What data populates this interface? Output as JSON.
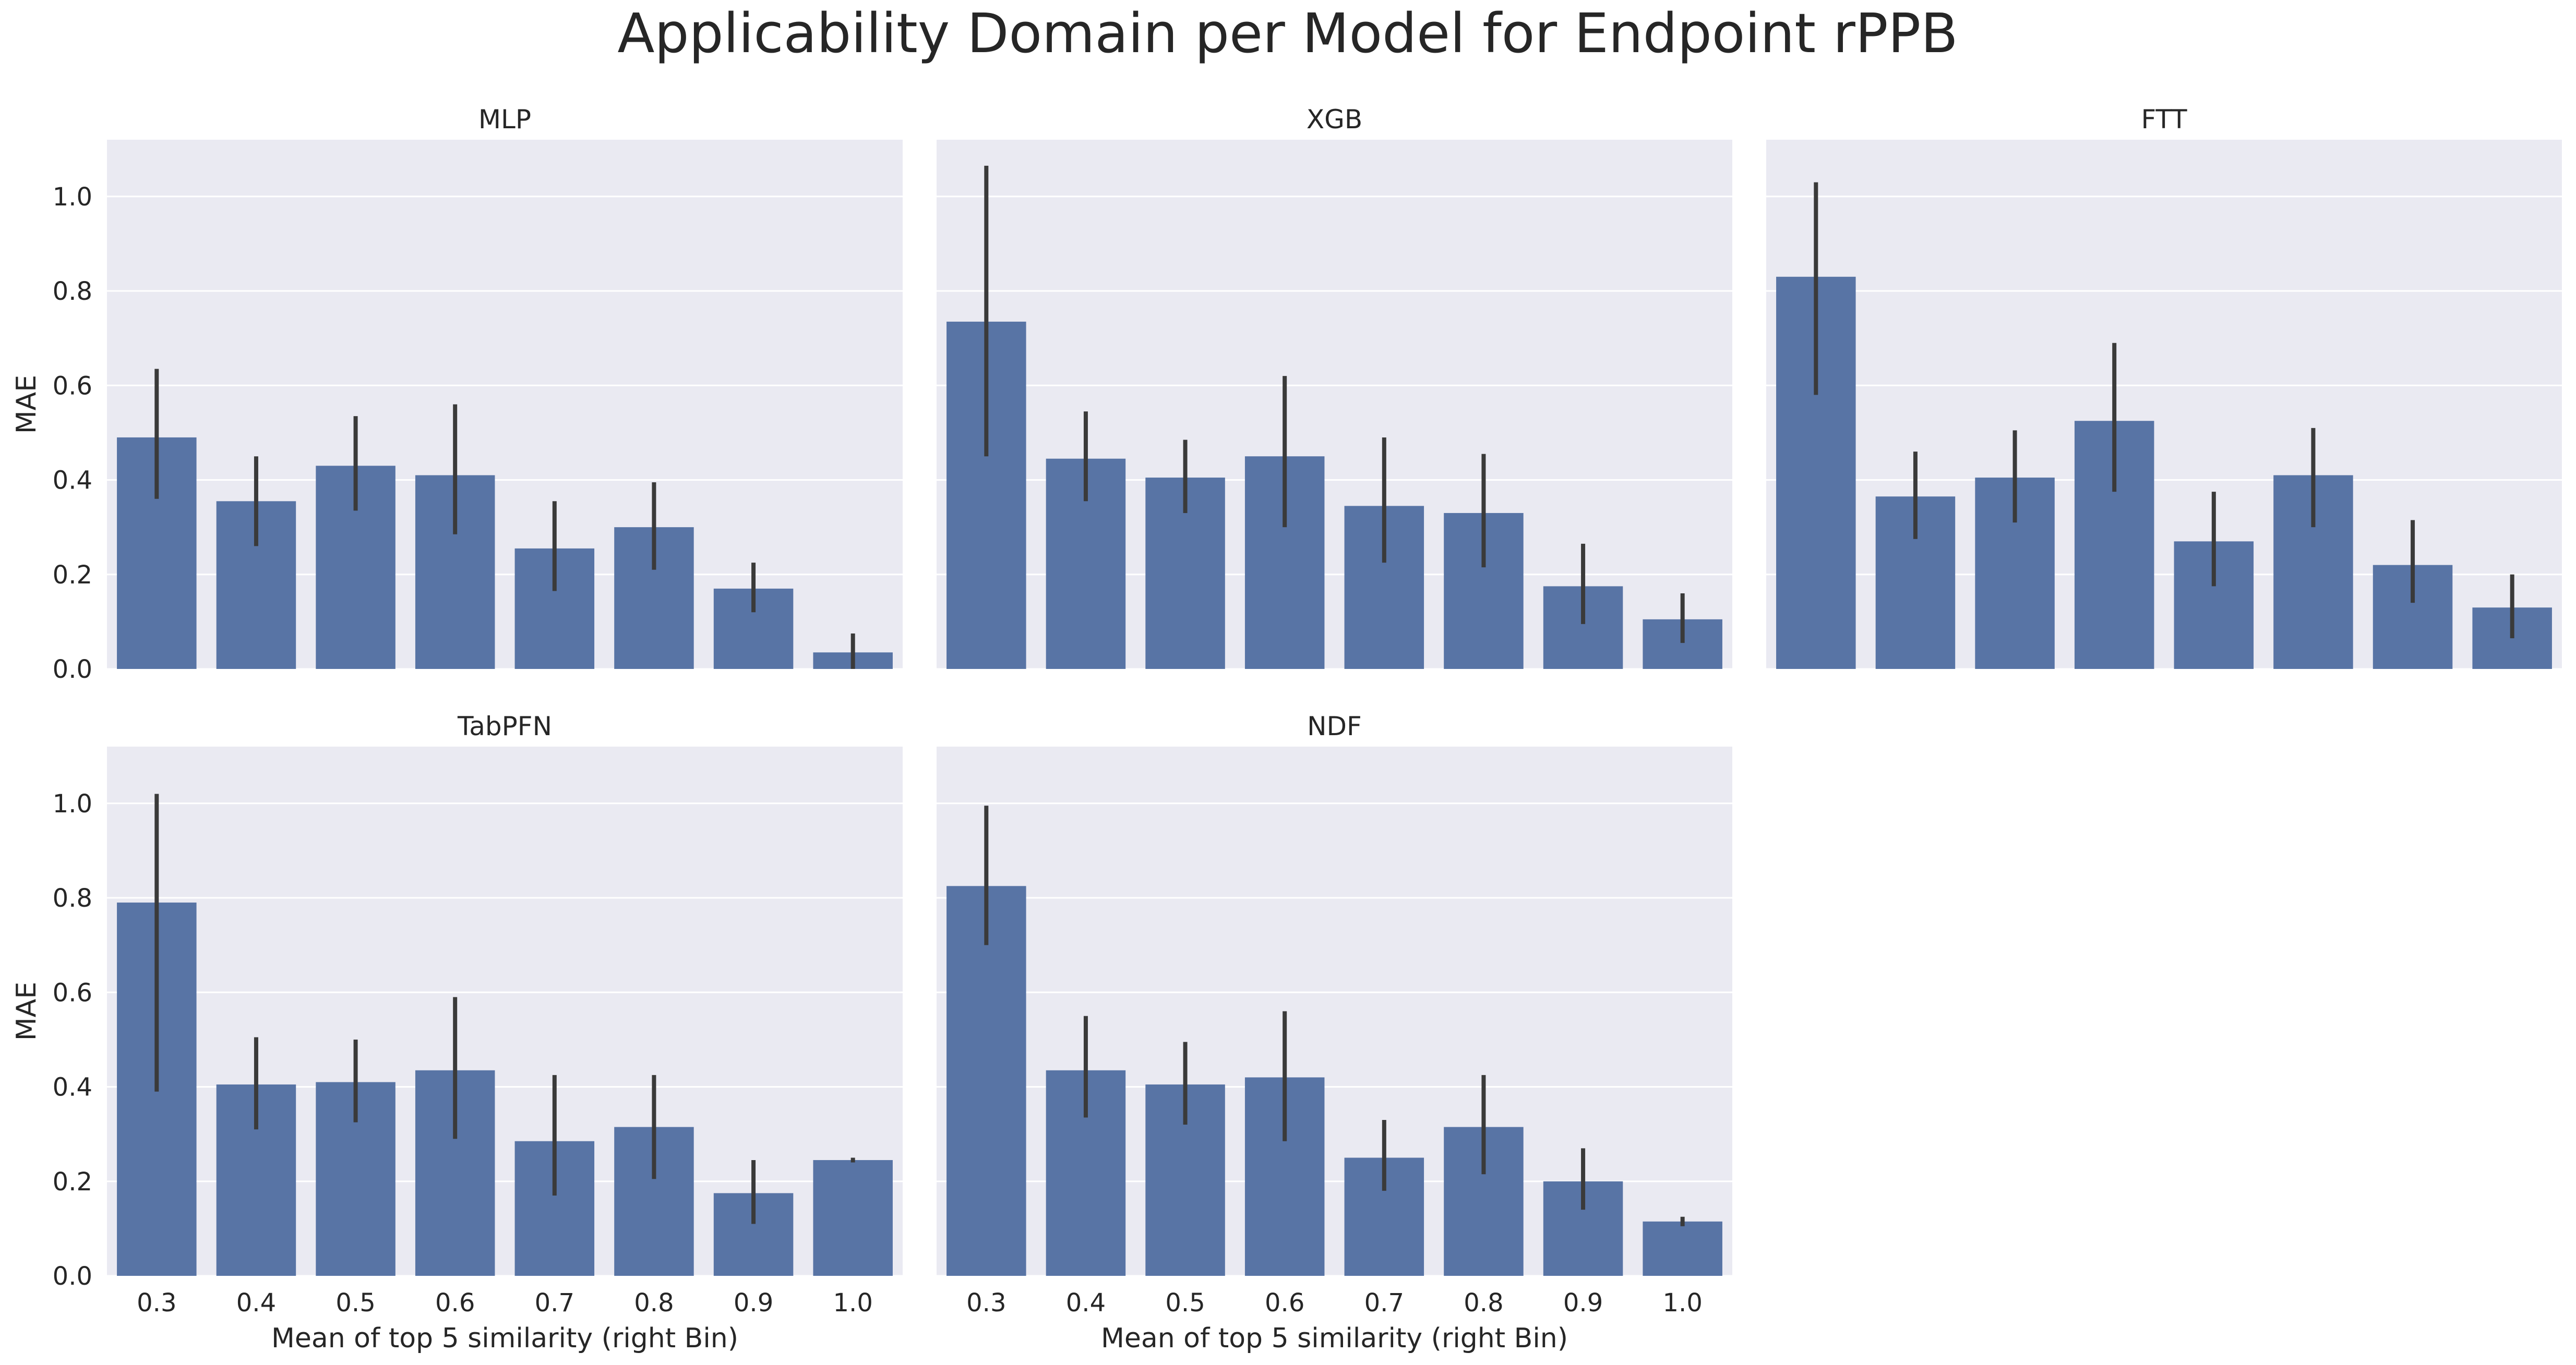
{
  "chart_data": {
    "type": "bar",
    "title": "Applicability Domain per Model for Endpoint rPPB",
    "xlabel": "Mean of top 5 similarity (right Bin)",
    "ylabel": "MAE",
    "categories": [
      "0.3",
      "0.4",
      "0.5",
      "0.6",
      "0.7",
      "0.8",
      "0.9",
      "1.0"
    ],
    "ylim": [
      0,
      1.12
    ],
    "yticks": [
      "0.0",
      "0.2",
      "0.4",
      "0.6",
      "0.8",
      "1.0"
    ],
    "grid": true,
    "bar_color": "#5874a5",
    "error_bar_color": "#3a3a3a",
    "background_color": "#eaeaf2",
    "panels": [
      {
        "name": "MLP",
        "values": [
          0.49,
          0.355,
          0.43,
          0.41,
          0.255,
          0.3,
          0.17,
          0.035
        ],
        "error_low": [
          0.36,
          0.26,
          0.335,
          0.285,
          0.165,
          0.21,
          0.12,
          0.0
        ],
        "error_high": [
          0.635,
          0.45,
          0.535,
          0.56,
          0.355,
          0.395,
          0.225,
          0.075
        ]
      },
      {
        "name": "XGB",
        "values": [
          0.735,
          0.445,
          0.405,
          0.45,
          0.345,
          0.33,
          0.175,
          0.105
        ],
        "error_low": [
          0.45,
          0.355,
          0.33,
          0.3,
          0.225,
          0.215,
          0.095,
          0.055
        ],
        "error_high": [
          1.065,
          0.545,
          0.485,
          0.62,
          0.49,
          0.455,
          0.265,
          0.16
        ]
      },
      {
        "name": "FTT",
        "values": [
          0.83,
          0.365,
          0.405,
          0.525,
          0.27,
          0.41,
          0.22,
          0.13
        ],
        "error_low": [
          0.58,
          0.275,
          0.31,
          0.375,
          0.175,
          0.3,
          0.14,
          0.065
        ],
        "error_high": [
          1.03,
          0.46,
          0.505,
          0.69,
          0.375,
          0.51,
          0.315,
          0.2
        ]
      },
      {
        "name": "TabPFN",
        "values": [
          0.79,
          0.405,
          0.41,
          0.435,
          0.285,
          0.315,
          0.175,
          0.245
        ],
        "error_low": [
          0.39,
          0.31,
          0.325,
          0.29,
          0.17,
          0.205,
          0.11,
          0.24
        ],
        "error_high": [
          1.02,
          0.505,
          0.5,
          0.59,
          0.425,
          0.425,
          0.245,
          0.25
        ]
      },
      {
        "name": "NDF",
        "values": [
          0.825,
          0.435,
          0.405,
          0.42,
          0.25,
          0.315,
          0.2,
          0.115
        ],
        "error_low": [
          0.7,
          0.335,
          0.32,
          0.285,
          0.18,
          0.215,
          0.14,
          0.105
        ],
        "error_high": [
          0.995,
          0.55,
          0.495,
          0.56,
          0.33,
          0.425,
          0.27,
          0.125
        ]
      }
    ]
  }
}
